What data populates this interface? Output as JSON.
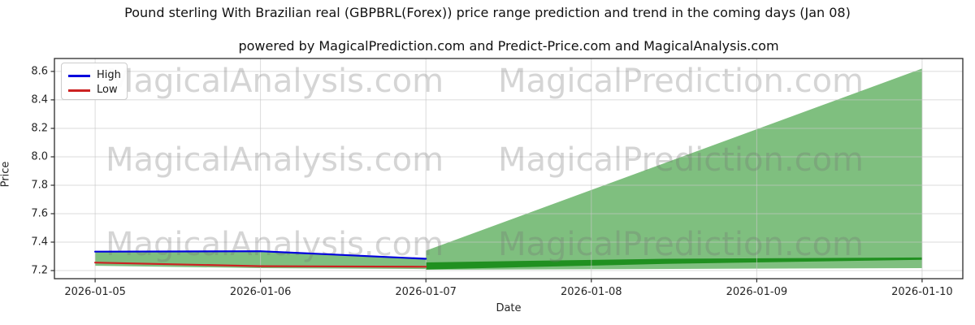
{
  "title": "Pound sterling With Brazilian real (GBPBRL(Forex)) price range prediction and trend in the coming days (Jan 08)",
  "subtitle": "powered by MagicalPrediction.com and Predict-Price.com and MagicalAnalysis.com",
  "axes": {
    "x_label": "Date",
    "y_label": "Price"
  },
  "legend": {
    "items": [
      {
        "label": "High",
        "color": "#0000dd"
      },
      {
        "label": "Low",
        "color": "#cc2222"
      }
    ]
  },
  "watermarks": {
    "texts": [
      "MagicalAnalysis.com",
      "MagicalPrediction.com"
    ]
  },
  "chart_data": {
    "type": "line",
    "title": "Pound sterling With Brazilian real (GBPBRL(Forex)) price range prediction and trend in the coming days (Jan 08)",
    "xlabel": "Date",
    "ylabel": "Price",
    "x_dates": [
      "2026-01-05",
      "2026-01-06",
      "2026-01-07",
      "2026-01-08",
      "2026-01-09",
      "2026-01-10"
    ],
    "series": [
      {
        "name": "High",
        "color": "#0000dd",
        "x_days": [
          0,
          1,
          2
        ],
        "values": [
          7.333,
          7.336,
          7.283
        ]
      },
      {
        "name": "Low",
        "color": "#cc2222",
        "x_days": [
          0,
          1,
          2
        ],
        "values": [
          7.256,
          7.231,
          7.227
        ]
      }
    ],
    "history_band": {
      "x_days": [
        0,
        1,
        2
      ],
      "top": [
        7.333,
        7.336,
        7.283
      ],
      "bottom": [
        7.234,
        7.217,
        7.211
      ],
      "color": "#008000",
      "opacity": 0.5
    },
    "prediction_fan": {
      "x_days": [
        2,
        5
      ],
      "top": [
        7.34,
        8.62
      ],
      "bottom": [
        7.206,
        7.217
      ],
      "color": "#008000",
      "opacity": 0.5
    },
    "trend_wedge": {
      "points": [
        [
          2,
          7.257
        ],
        [
          3.45,
          7.283
        ],
        [
          5,
          7.292
        ],
        [
          5,
          7.276
        ],
        [
          3.45,
          7.247
        ],
        [
          2,
          7.208
        ]
      ],
      "color": "#008000",
      "opacity": 0.75
    },
    "yticks": [
      7.2,
      7.4,
      7.6,
      7.8,
      8.0,
      8.2,
      8.4,
      8.6
    ],
    "ylim": [
      7.143,
      8.691
    ],
    "xlim_days": [
      -0.246,
      5.246
    ],
    "grid": true,
    "legend_position": "upper left"
  }
}
